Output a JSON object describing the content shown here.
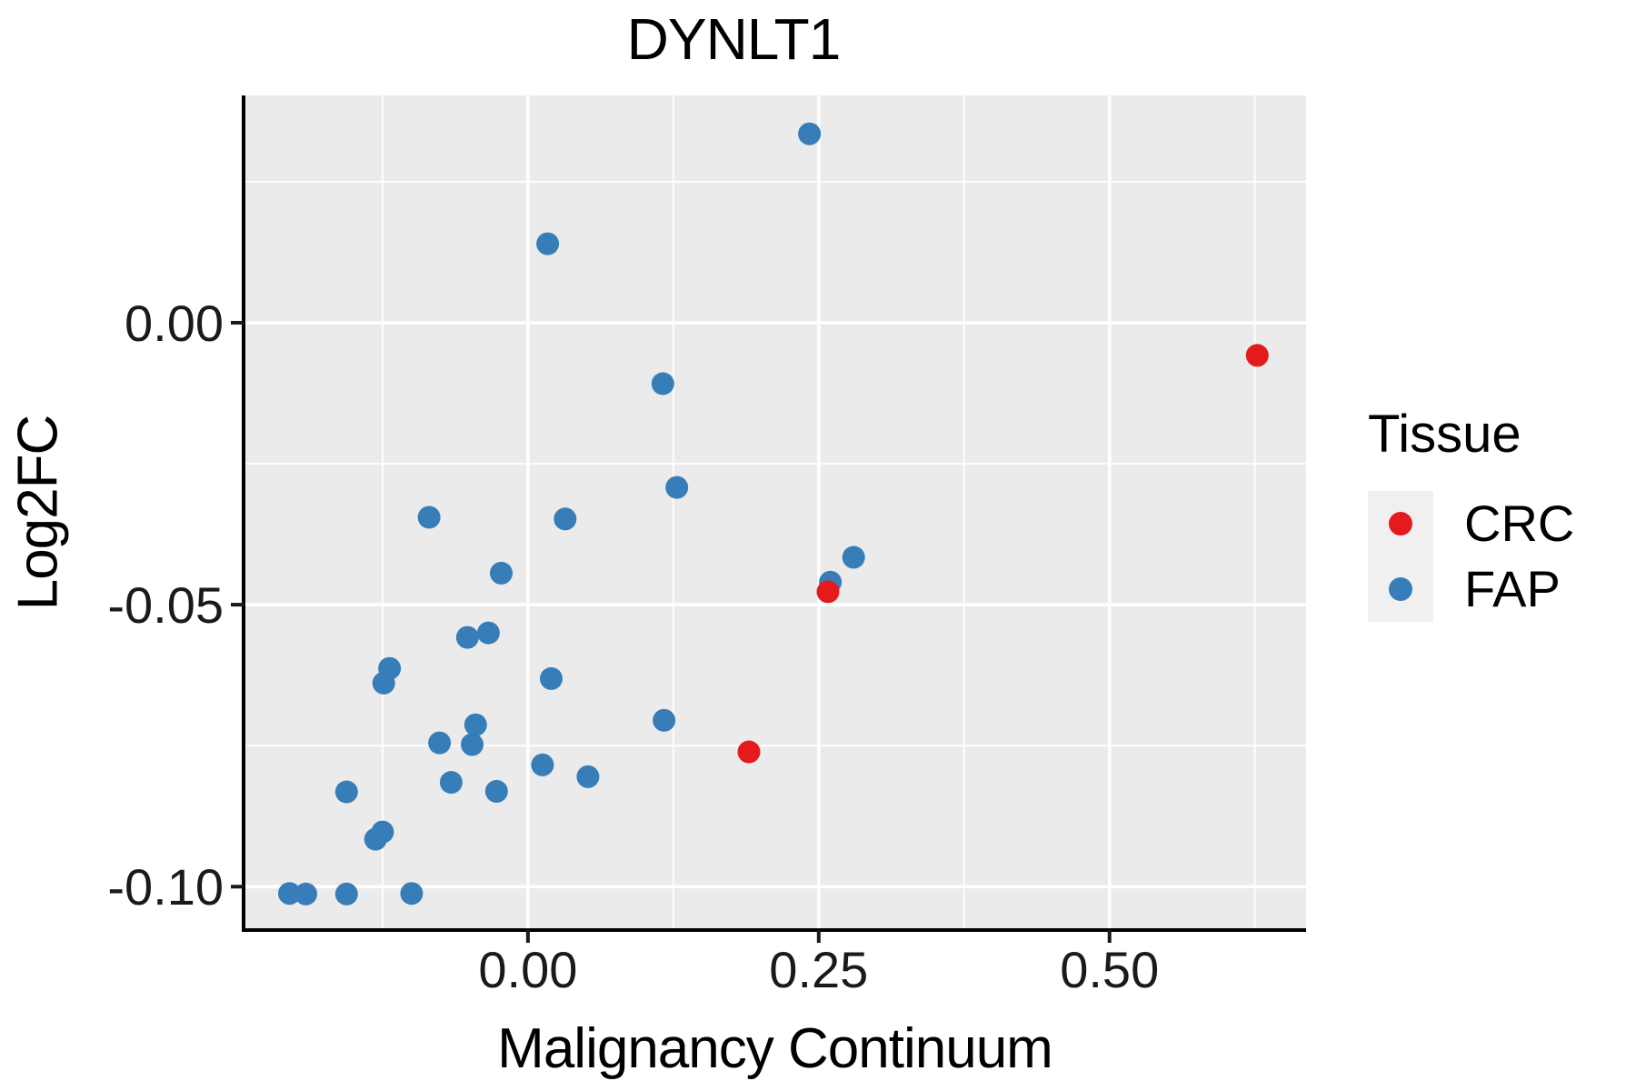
{
  "page": {
    "background": "#FFFFFF",
    "panel_bg": "#EBEBEB",
    "grid_color": "#FFFFFF",
    "axis_color": "#000000",
    "tick_label_color": "#1a1a1a"
  },
  "legend": {
    "title": "Tissue",
    "entries": [
      {
        "label": "CRC",
        "color": "#E41A1C"
      },
      {
        "label": "FAP",
        "color": "#377EB8"
      }
    ]
  },
  "chart_data": {
    "type": "scatter",
    "title": "DYNLT1",
    "xlabel": "Malignancy Continuum",
    "ylabel": "Log2FC",
    "x_range": [
      -0.2445,
      0.669
    ],
    "y_range": [
      -0.1077,
      0.0403
    ],
    "grid": true,
    "legend_position": "right",
    "x_ticks": [
      {
        "value": 0.0,
        "label": "0.00"
      },
      {
        "value": 0.25,
        "label": "0.25"
      },
      {
        "value": 0.5,
        "label": "0.50"
      }
    ],
    "y_ticks": [
      {
        "value": 0.0,
        "label": "0.00"
      },
      {
        "value": -0.05,
        "label": "-0.05"
      },
      {
        "value": -0.1,
        "label": "-0.10"
      }
    ],
    "x_minor": [
      -0.125,
      0.125,
      0.375,
      0.625
    ],
    "y_minor": [
      0.025,
      -0.025,
      -0.075
    ],
    "series": [
      {
        "name": "FAP",
        "color": "#377EB8",
        "points": [
          [
            0.242,
            0.0335
          ],
          [
            0.017,
            0.014
          ],
          [
            0.116,
            -0.0108
          ],
          [
            0.128,
            -0.0292
          ],
          [
            -0.085,
            -0.0345
          ],
          [
            0.032,
            -0.0348
          ],
          [
            -0.023,
            -0.0444
          ],
          [
            0.28,
            -0.0416
          ],
          [
            0.26,
            -0.046
          ],
          [
            -0.052,
            -0.0558
          ],
          [
            -0.034,
            -0.055
          ],
          [
            -0.119,
            -0.0613
          ],
          [
            -0.124,
            -0.0639
          ],
          [
            0.02,
            -0.0631
          ],
          [
            0.117,
            -0.0705
          ],
          [
            -0.045,
            -0.0713
          ],
          [
            -0.048,
            -0.0748
          ],
          [
            -0.076,
            -0.0745
          ],
          [
            0.0125,
            -0.0784
          ],
          [
            0.0516,
            -0.0805
          ],
          [
            -0.066,
            -0.0815
          ],
          [
            -0.027,
            -0.0831
          ],
          [
            -0.156,
            -0.0832
          ],
          [
            -0.125,
            -0.0903
          ],
          [
            -0.131,
            -0.0916
          ],
          [
            -0.205,
            -0.1012
          ],
          [
            -0.191,
            -0.1013
          ],
          [
            -0.156,
            -0.1013
          ],
          [
            -0.1,
            -0.1012
          ]
        ]
      },
      {
        "name": "CRC",
        "color": "#E41A1C",
        "points": [
          [
            0.627,
            -0.0058
          ],
          [
            0.258,
            -0.0477
          ],
          [
            0.19,
            -0.0761
          ]
        ]
      }
    ]
  }
}
